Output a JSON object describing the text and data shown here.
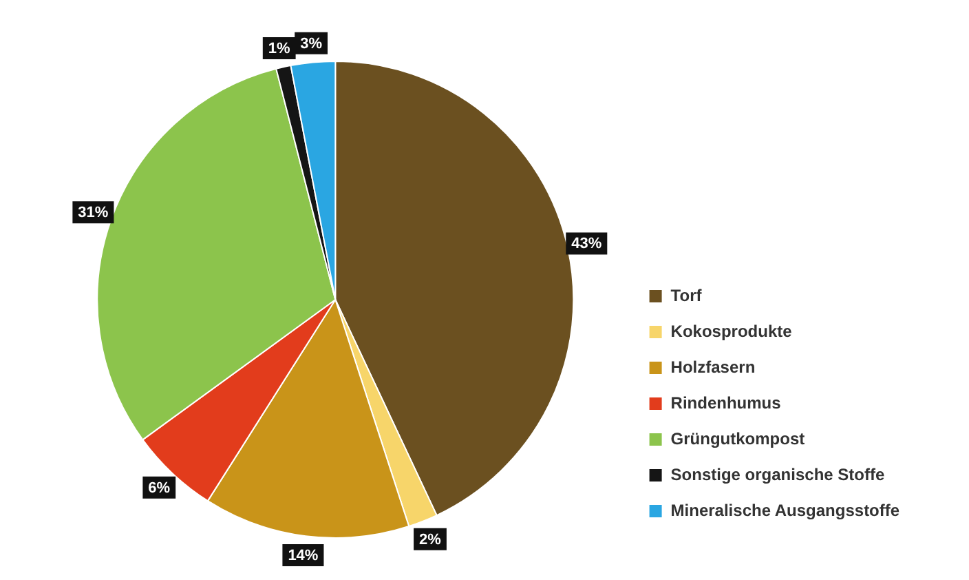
{
  "chart_data": {
    "type": "pie",
    "categories": [
      "Torf",
      "Kokosprodukte",
      "Holzfasern",
      "Rindenhumus",
      "Grüngutkompost",
      "Sonstige organische Stoffe",
      "Mineralische Ausgangsstoffe"
    ],
    "values": [
      43,
      2,
      14,
      6,
      31,
      1,
      3
    ],
    "colors": [
      "#6b5020",
      "#f7d56a",
      "#c99419",
      "#e23c1c",
      "#8cc44c",
      "#151515",
      "#2aa6e2"
    ],
    "value_labels": [
      "43%",
      "2%",
      "14%",
      "6%",
      "31%",
      "1%",
      "3%"
    ],
    "legend": "bottom right"
  }
}
